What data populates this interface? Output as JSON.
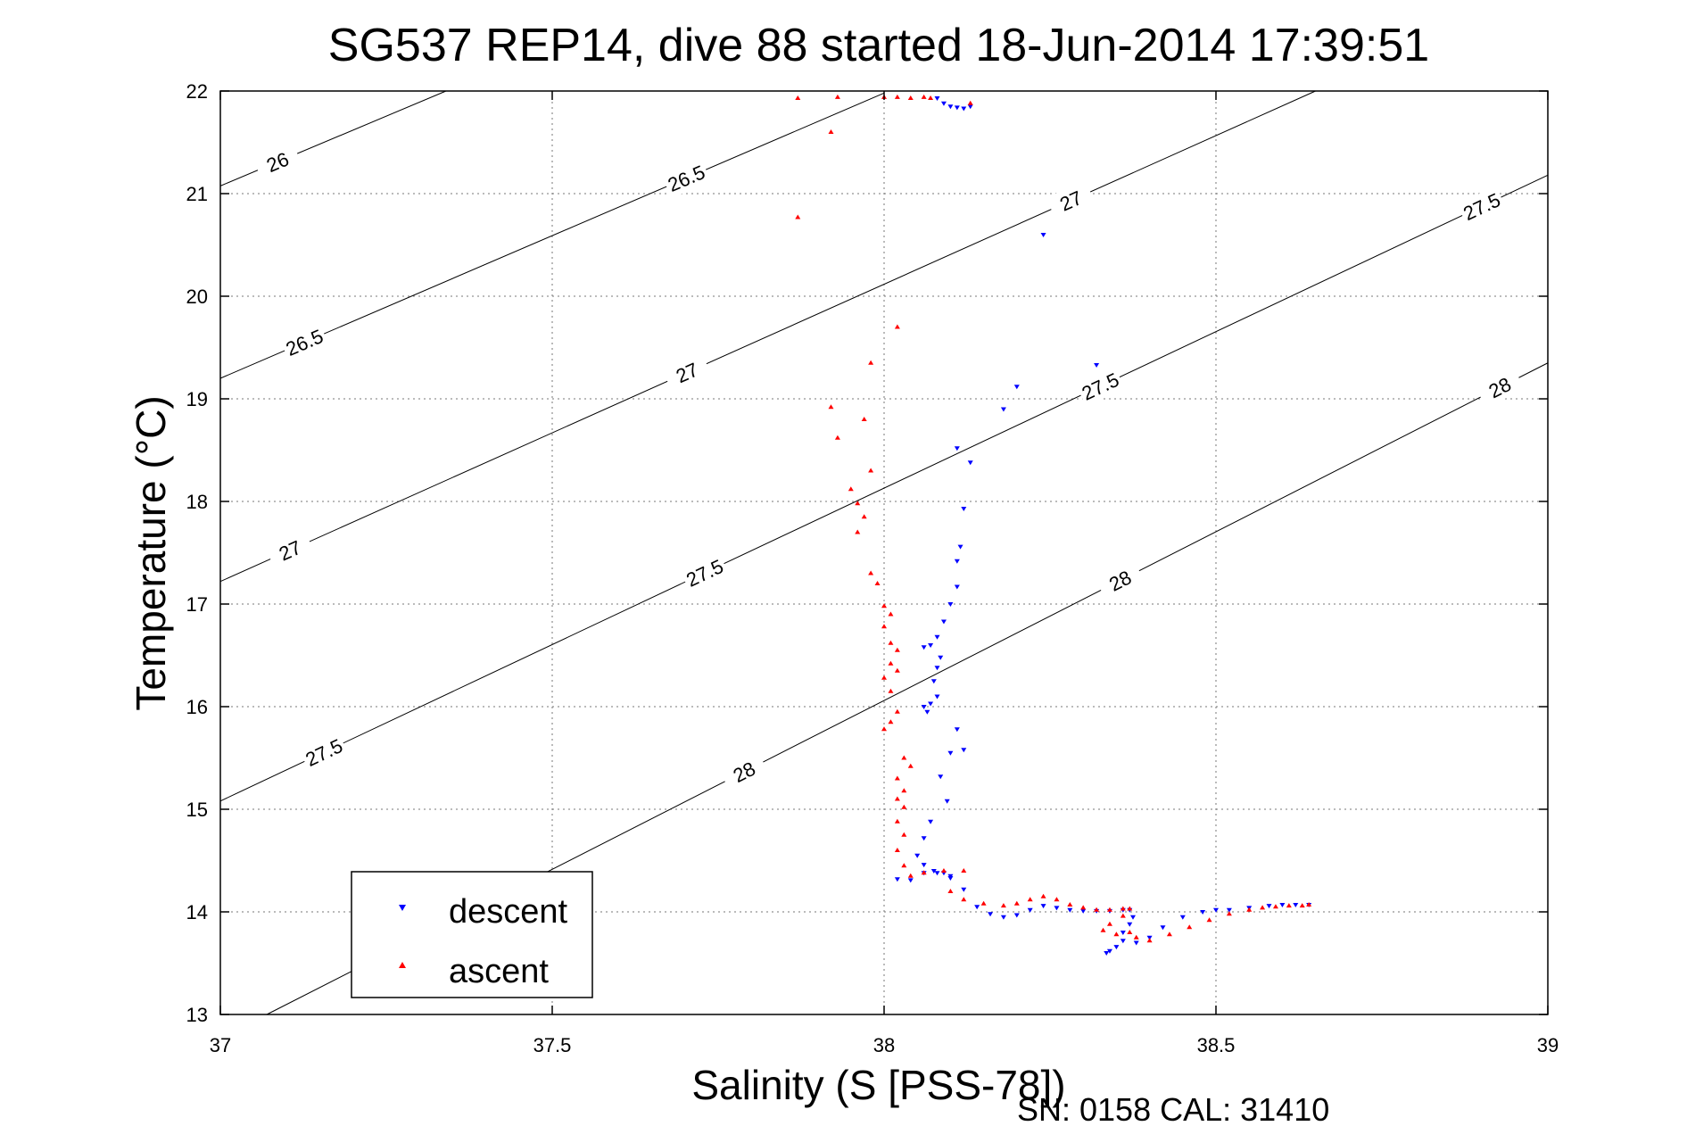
{
  "figure": {
    "title": "SG537 REP14, dive 88 started 18-Jun-2014 17:39:51",
    "footer": "SN: 0158  CAL: 31410"
  },
  "chart_data": {
    "type": "scatter",
    "title": "SG537 REP14, dive 88 started 18-Jun-2014 17:39:51",
    "xlabel": "Salinity (S [PSS-78])",
    "ylabel": "Temperature (°C)",
    "xlim": [
      37,
      39
    ],
    "ylim": [
      13,
      22
    ],
    "xticks": [
      "37",
      "37.5",
      "38",
      "38.5",
      "39"
    ],
    "yticks": [
      "13",
      "14",
      "15",
      "16",
      "17",
      "18",
      "19",
      "20",
      "21",
      "22"
    ],
    "grid": true,
    "legend_position": "bottom-left",
    "series": [
      {
        "name": "descent",
        "color": "#0000ff",
        "marker": "triangle-down",
        "points": [
          [
            38.08,
            21.93
          ],
          [
            38.09,
            21.88
          ],
          [
            38.1,
            21.85
          ],
          [
            38.11,
            21.84
          ],
          [
            38.12,
            21.83
          ],
          [
            38.13,
            21.85
          ],
          [
            38.24,
            20.6
          ],
          [
            38.32,
            19.33
          ],
          [
            38.2,
            19.12
          ],
          [
            38.18,
            18.9
          ],
          [
            38.11,
            18.52
          ],
          [
            38.13,
            18.38
          ],
          [
            38.12,
            17.93
          ],
          [
            38.115,
            17.56
          ],
          [
            38.11,
            17.42
          ],
          [
            38.11,
            17.17
          ],
          [
            38.1,
            17.0
          ],
          [
            38.09,
            16.83
          ],
          [
            38.08,
            16.68
          ],
          [
            38.07,
            16.6
          ],
          [
            38.06,
            16.58
          ],
          [
            38.085,
            16.48
          ],
          [
            38.08,
            16.38
          ],
          [
            38.075,
            16.25
          ],
          [
            38.08,
            16.1
          ],
          [
            38.07,
            16.03
          ],
          [
            38.06,
            16.0
          ],
          [
            38.065,
            15.95
          ],
          [
            38.11,
            15.78
          ],
          [
            38.12,
            15.58
          ],
          [
            38.1,
            15.55
          ],
          [
            38.085,
            15.32
          ],
          [
            38.095,
            15.08
          ],
          [
            38.07,
            14.88
          ],
          [
            38.06,
            14.72
          ],
          [
            38.05,
            14.55
          ],
          [
            38.06,
            14.46
          ],
          [
            38.075,
            14.4
          ],
          [
            38.09,
            14.38
          ],
          [
            38.1,
            14.35
          ],
          [
            38.02,
            14.32
          ],
          [
            38.04,
            14.31
          ],
          [
            38.06,
            14.38
          ],
          [
            38.08,
            14.38
          ],
          [
            38.1,
            14.33
          ],
          [
            38.12,
            14.22
          ],
          [
            38.14,
            14.05
          ],
          [
            38.16,
            13.98
          ],
          [
            38.18,
            13.95
          ],
          [
            38.2,
            13.97
          ],
          [
            38.22,
            14.02
          ],
          [
            38.24,
            14.06
          ],
          [
            38.26,
            14.04
          ],
          [
            38.28,
            14.02
          ],
          [
            38.3,
            14.01
          ],
          [
            38.32,
            14.01
          ],
          [
            38.34,
            14.01
          ],
          [
            38.36,
            14.02
          ],
          [
            38.37,
            14.02
          ],
          [
            38.375,
            13.95
          ],
          [
            38.37,
            13.88
          ],
          [
            38.36,
            13.8
          ],
          [
            38.36,
            13.72
          ],
          [
            38.35,
            13.66
          ],
          [
            38.34,
            13.62
          ],
          [
            38.335,
            13.6
          ],
          [
            38.38,
            13.7
          ],
          [
            38.4,
            13.75
          ],
          [
            38.42,
            13.85
          ],
          [
            38.45,
            13.95
          ],
          [
            38.48,
            14.0
          ],
          [
            38.5,
            14.02
          ],
          [
            38.52,
            14.02
          ],
          [
            38.55,
            14.04
          ],
          [
            38.58,
            14.06
          ],
          [
            38.6,
            14.07
          ],
          [
            38.62,
            14.07
          ],
          [
            38.64,
            14.07
          ]
        ]
      },
      {
        "name": "ascent",
        "color": "#ff0000",
        "marker": "triangle-up",
        "points": [
          [
            37.87,
            21.93
          ],
          [
            37.93,
            21.94
          ],
          [
            38.0,
            21.94
          ],
          [
            38.02,
            21.94
          ],
          [
            38.04,
            21.93
          ],
          [
            38.06,
            21.94
          ],
          [
            38.07,
            21.93
          ],
          [
            38.13,
            21.88
          ],
          [
            37.92,
            21.6
          ],
          [
            37.87,
            20.77
          ],
          [
            38.02,
            19.7
          ],
          [
            37.98,
            19.35
          ],
          [
            37.92,
            18.92
          ],
          [
            37.97,
            18.8
          ],
          [
            37.93,
            18.62
          ],
          [
            37.98,
            18.3
          ],
          [
            37.95,
            18.12
          ],
          [
            37.96,
            17.98
          ],
          [
            37.97,
            17.85
          ],
          [
            37.96,
            17.7
          ],
          [
            37.98,
            17.3
          ],
          [
            37.99,
            17.2
          ],
          [
            38.0,
            16.98
          ],
          [
            38.01,
            16.9
          ],
          [
            38.0,
            16.78
          ],
          [
            38.01,
            16.62
          ],
          [
            38.02,
            16.55
          ],
          [
            38.01,
            16.42
          ],
          [
            38.02,
            16.35
          ],
          [
            38.0,
            16.28
          ],
          [
            38.01,
            16.15
          ],
          [
            38.02,
            15.95
          ],
          [
            38.01,
            15.85
          ],
          [
            38.0,
            15.78
          ],
          [
            38.03,
            15.5
          ],
          [
            38.04,
            15.42
          ],
          [
            38.02,
            15.3
          ],
          [
            38.03,
            15.18
          ],
          [
            38.02,
            15.1
          ],
          [
            38.03,
            15.02
          ],
          [
            38.02,
            14.88
          ],
          [
            38.03,
            14.75
          ],
          [
            38.02,
            14.6
          ],
          [
            38.03,
            14.45
          ],
          [
            38.04,
            14.35
          ],
          [
            38.06,
            14.38
          ],
          [
            38.09,
            14.4
          ],
          [
            38.12,
            14.4
          ],
          [
            38.1,
            14.2
          ],
          [
            38.12,
            14.12
          ],
          [
            38.15,
            14.08
          ],
          [
            38.18,
            14.06
          ],
          [
            38.2,
            14.08
          ],
          [
            38.22,
            14.12
          ],
          [
            38.24,
            14.15
          ],
          [
            38.26,
            14.12
          ],
          [
            38.28,
            14.07
          ],
          [
            38.3,
            14.04
          ],
          [
            38.32,
            14.02
          ],
          [
            38.34,
            14.02
          ],
          [
            38.36,
            14.03
          ],
          [
            38.37,
            14.03
          ],
          [
            38.36,
            13.96
          ],
          [
            38.34,
            13.88
          ],
          [
            38.33,
            13.82
          ],
          [
            38.35,
            13.78
          ],
          [
            38.37,
            13.8
          ],
          [
            38.38,
            13.75
          ],
          [
            38.4,
            13.72
          ],
          [
            38.43,
            13.78
          ],
          [
            38.46,
            13.85
          ],
          [
            38.49,
            13.92
          ],
          [
            38.52,
            13.98
          ],
          [
            38.55,
            14.02
          ],
          [
            38.57,
            14.04
          ],
          [
            38.59,
            14.05
          ],
          [
            38.61,
            14.06
          ],
          [
            38.63,
            14.06
          ],
          [
            38.64,
            14.07
          ]
        ]
      }
    ],
    "density_contours": [
      {
        "label": "26",
        "line": [
          [
            37,
            21.075
          ],
          [
            37.34,
            22
          ]
        ],
        "label_at": [
          [
            37.09,
            21.25
          ]
        ]
      },
      {
        "label": "26.5",
        "line": [
          [
            37,
            19.2
          ],
          [
            38.0,
            21.98
          ]
        ],
        "label_at": [
          [
            37.13,
            19.5
          ],
          [
            37.7,
            21.18
          ]
        ]
      },
      {
        "label": "27",
        "line": [
          [
            37,
            17.22
          ],
          [
            38.65,
            22
          ]
        ],
        "label_at": [
          [
            37.11,
            17.45
          ],
          [
            37.7,
            19.3
          ],
          [
            38.28,
            20.95
          ]
        ]
      },
      {
        "label": "27.5",
        "line": [
          [
            37,
            15.08
          ],
          [
            39,
            21.18
          ]
        ],
        "label_at": [
          [
            37.16,
            15.5
          ],
          [
            37.73,
            17.3
          ],
          [
            38.32,
            19.2
          ],
          [
            38.9,
            20.88
          ]
        ]
      },
      {
        "label": "28",
        "line": [
          [
            37.07,
            13.0
          ],
          [
            39,
            19.35
          ]
        ],
        "label_at": [
          [
            37.78,
            15.48
          ],
          [
            38.35,
            17.3
          ],
          [
            38.93,
            19.08
          ]
        ]
      }
    ]
  }
}
